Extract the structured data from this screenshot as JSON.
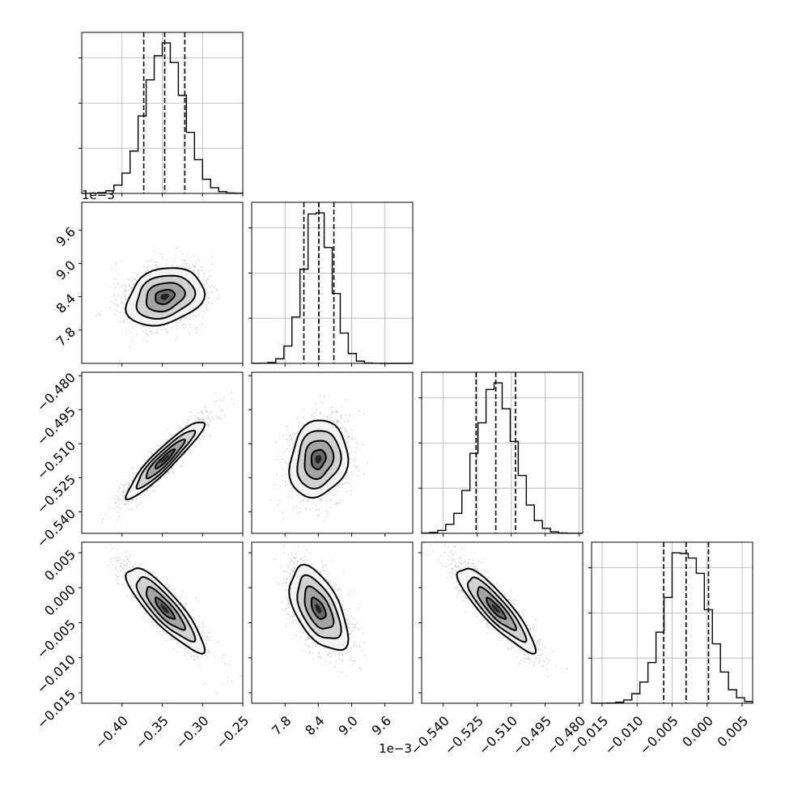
{
  "chart_data": {
    "type": "corner",
    "grid": true,
    "parameters": [
      {
        "index": 0,
        "range": [
          -0.45,
          -0.25
        ],
        "ticks": [
          -0.4,
          -0.35,
          -0.3,
          -0.25
        ],
        "tick_labels": [
          "−0.40",
          "−0.35",
          "−0.30",
          "−0.25"
        ],
        "mean": -0.347,
        "sigma": 0.024,
        "quantiles": [
          -0.373,
          -0.347,
          -0.322
        ],
        "offset_text": ""
      },
      {
        "index": 1,
        "range": [
          0.0072,
          0.0101
        ],
        "ticks": [
          0.0078,
          0.0084,
          0.009,
          0.0096
        ],
        "tick_labels": [
          "7.8",
          "8.4",
          "9.0",
          "9.6"
        ],
        "mean": 0.0084,
        "sigma": 0.00026,
        "quantiles": [
          0.00814,
          0.00841,
          0.00868
        ],
        "offset_text": "1e−3"
      },
      {
        "index": 2,
        "range": [
          -0.5495,
          -0.4785
        ],
        "ticks": [
          -0.54,
          -0.525,
          -0.51,
          -0.495,
          -0.48
        ],
        "tick_labels": [
          "−0.540",
          "−0.525",
          "−0.510",
          "−0.495",
          "−0.480"
        ],
        "mean": -0.5168,
        "sigma": 0.0085,
        "quantiles": [
          -0.5255,
          -0.5168,
          -0.5081
        ],
        "offset_text": ""
      },
      {
        "index": 3,
        "range": [
          -0.0165,
          0.0065
        ],
        "ticks": [
          -0.015,
          -0.01,
          -0.005,
          0.0,
          0.005
        ],
        "tick_labels": [
          "−0.015",
          "−0.010",
          "−0.005",
          "0.000",
          "0.005"
        ],
        "mean": -0.003,
        "sigma": 0.003,
        "quantiles": [
          -0.0062,
          -0.003,
          0.0002
        ],
        "offset_text": ""
      }
    ],
    "correlations": {
      "1,0": 0.25,
      "2,0": 0.93,
      "2,1": 0.15,
      "3,0": -0.86,
      "3,1": -0.55,
      "3,2": -0.88
    },
    "histogram_bins": 20,
    "contour_levels_sigma": [
      0.5,
      1.0,
      1.5,
      2.0
    ],
    "samples_per_panel": 1500
  }
}
